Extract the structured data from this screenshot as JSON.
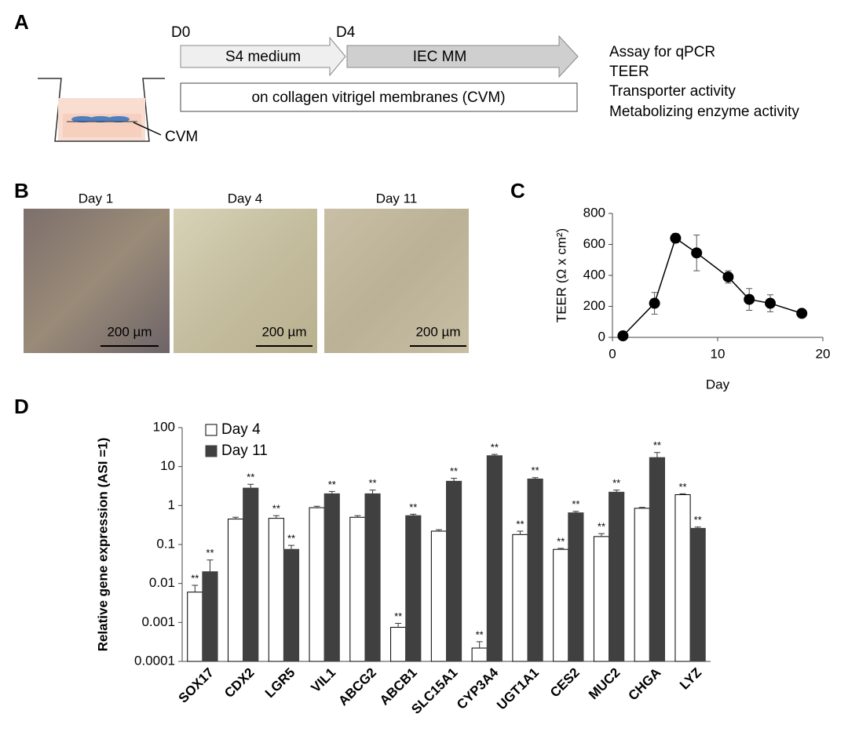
{
  "panel_a": {
    "label": "A",
    "day_start": "D0",
    "day_switch": "D4",
    "stage1": "S4 medium",
    "stage2": "IEC MM",
    "culture": "on collagen vitrigel membranes  (CVM)",
    "insert_label": "CVM",
    "assays": [
      "Assay for qPCR",
      "TEER",
      "Transporter activity",
      "Metabolizing enzyme activity"
    ]
  },
  "panel_b": {
    "label": "B",
    "images": [
      {
        "title": "Day 1",
        "scale_bar": "200 µm"
      },
      {
        "title": "Day 4",
        "scale_bar": "200 µm"
      },
      {
        "title": "Day 11",
        "scale_bar": "200 µm"
      }
    ]
  },
  "chart_data": [
    {
      "type": "line",
      "panel_label": "C",
      "x_label": "Day",
      "y_label": "TEER (Ω x cm²)",
      "x": [
        1,
        4,
        6,
        8,
        11,
        13,
        15,
        18
      ],
      "values": [
        10,
        220,
        640,
        545,
        390,
        245,
        220,
        155
      ],
      "errors": [
        5,
        70,
        30,
        115,
        40,
        70,
        55,
        10
      ],
      "color": "#000000",
      "xlim": [
        0,
        20
      ],
      "xticks": [
        0,
        10,
        20
      ],
      "ylim": [
        0,
        800
      ],
      "yticks": [
        0,
        200,
        400,
        600,
        800
      ]
    },
    {
      "type": "bar",
      "panel_label": "D",
      "y_label": "Relative gene expression (ASI =1)",
      "log_scale": true,
      "legend": "upper left",
      "categories": [
        "SOX17",
        "CDX2",
        "LGR5",
        "VIL1",
        "ABCG2",
        "ABCB1",
        "SLC15A1",
        "CYP3A4",
        "UGT1A1",
        "CES2",
        "MUC2",
        "CHGA",
        "LYZ"
      ],
      "series": [
        {
          "name": "Day 4",
          "color": "#ffffff",
          "edge_color": "#000000",
          "values": [
            0.006,
            0.45,
            0.47,
            0.88,
            0.5,
            0.00075,
            0.22,
            0.00022,
            0.18,
            0.075,
            0.16,
            0.85,
            1.9
          ],
          "errors": [
            0.003,
            0.05,
            0.08,
            0.08,
            0.05,
            0.0002,
            0.02,
            0.0001,
            0.04,
            0.005,
            0.03,
            0.05,
            0.1
          ],
          "annotations": [
            "**",
            null,
            "**",
            null,
            null,
            "**",
            null,
            "**",
            "**",
            "**",
            "**",
            null,
            "**"
          ]
        },
        {
          "name": "Day 11",
          "color": "#404040",
          "edge_color": "#404040",
          "values": [
            0.02,
            2.8,
            0.075,
            2.0,
            2.0,
            0.55,
            4.2,
            19,
            4.8,
            0.65,
            2.2,
            17,
            0.26
          ],
          "errors": [
            0.02,
            0.7,
            0.02,
            0.3,
            0.5,
            0.05,
            0.8,
            1.5,
            0.4,
            0.06,
            0.3,
            6,
            0.02
          ],
          "annotations": [
            "**",
            "**",
            "**",
            "**",
            "**",
            "**",
            "**",
            "**",
            "**",
            "**",
            "**",
            "**",
            "**"
          ]
        }
      ],
      "ylim": [
        0.0001,
        100
      ],
      "yticks": [
        0.0001,
        0.001,
        0.01,
        0.1,
        1,
        10,
        100
      ]
    }
  ]
}
